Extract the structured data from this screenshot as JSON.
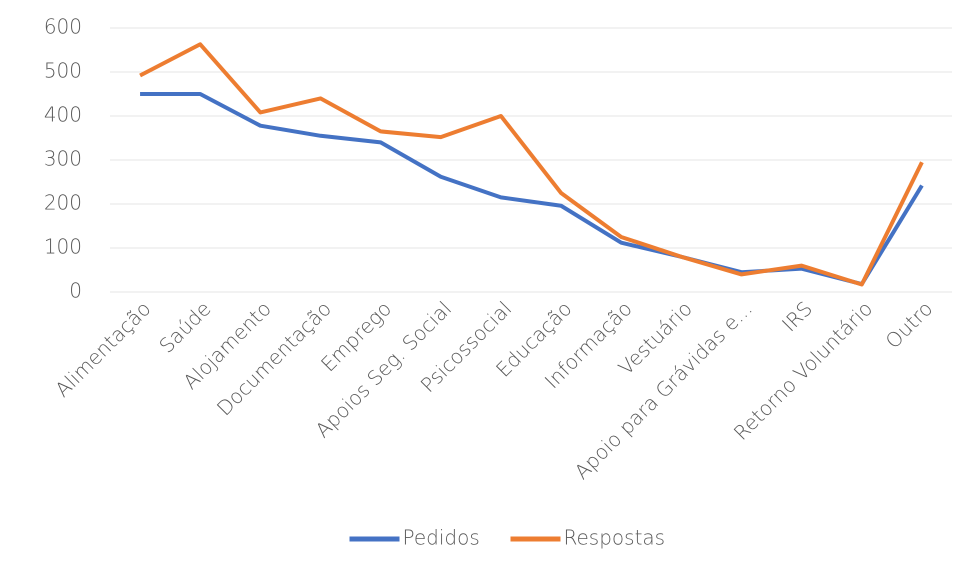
{
  "chart_data": {
    "type": "line",
    "categories": [
      "Alimentação",
      "Saúde",
      "Alojamento",
      "Documentação",
      "Emprego",
      "Apoios Seg. Social",
      "Psicossocial",
      "Educação",
      "Informação",
      "Vestuário",
      "Apoio para Grávidas e...",
      "IRS",
      "Retorno Voluntário",
      "Outro"
    ],
    "series": [
      {
        "name": "Pedidos",
        "color": "#4472c4",
        "values": [
          450,
          450,
          378,
          355,
          340,
          262,
          215,
          196,
          112,
          80,
          45,
          53,
          18,
          242
        ]
      },
      {
        "name": "Respostas",
        "color": "#ed7d31",
        "values": [
          492,
          563,
          408,
          440,
          365,
          352,
          400,
          225,
          125,
          80,
          40,
          60,
          17,
          295
        ]
      }
    ],
    "ylim": [
      0,
      600
    ],
    "yticks": [
      0,
      100,
      200,
      300,
      400,
      500,
      600
    ],
    "grid": true,
    "legend": "bottom"
  }
}
